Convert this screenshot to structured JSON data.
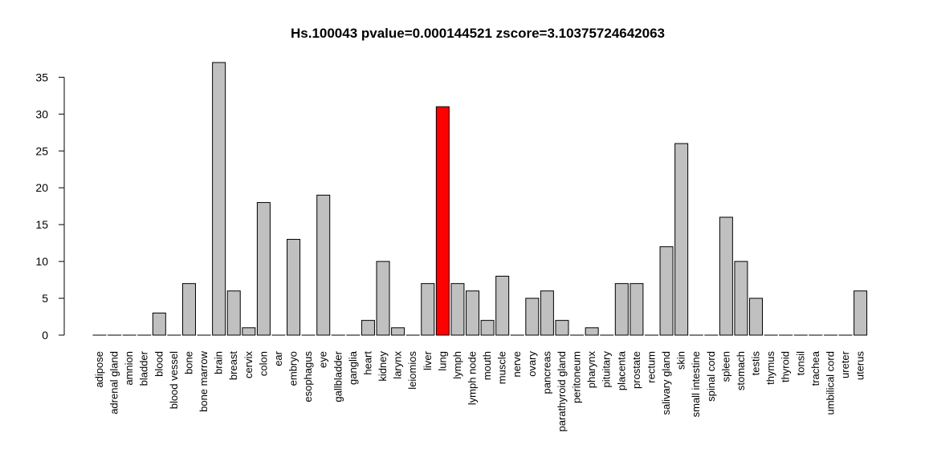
{
  "chart_data": {
    "type": "bar",
    "title": "Hs.100043 pvalue=0.000144521 zscore=3.10375724642063",
    "xlabel": "",
    "ylabel": "",
    "ylim": [
      0,
      37
    ],
    "yticks": [
      0,
      5,
      10,
      15,
      20,
      25,
      30,
      35
    ],
    "grid": false,
    "categories": [
      "adipose",
      "adrenal gland",
      "amnion",
      "bladder",
      "blood",
      "blood vessel",
      "bone",
      "bone marrow",
      "brain",
      "breast",
      "cervix",
      "colon",
      "ear",
      "embryo",
      "esophagus",
      "eye",
      "gallbladder",
      "ganglia",
      "heart",
      "kidney",
      "larynx",
      "leiomios",
      "liver",
      "lung",
      "lymph",
      "lymph node",
      "mouth",
      "muscle",
      "nerve",
      "ovary",
      "pancreas",
      "parathyroid gland",
      "peritoneum",
      "pharynx",
      "pituitary",
      "placenta",
      "prostate",
      "rectum",
      "salivary gland",
      "skin",
      "small intestine",
      "spinal cord",
      "spleen",
      "stomach",
      "testis",
      "thymus",
      "thyroid",
      "tonsil",
      "trachea",
      "umbilical cord",
      "ureter",
      "uterus"
    ],
    "values": [
      0,
      0,
      0,
      0,
      3,
      0,
      7,
      0,
      37,
      6,
      1,
      18,
      0,
      13,
      0,
      19,
      0,
      0,
      2,
      10,
      1,
      0,
      7,
      31,
      7,
      6,
      2,
      8,
      0,
      5,
      6,
      2,
      0,
      1,
      0,
      7,
      7,
      0,
      12,
      26,
      0,
      0,
      16,
      10,
      5,
      0,
      0,
      0,
      0,
      0,
      0,
      6
    ],
    "highlight_category": "lung",
    "bar_color": "#c0c0c0",
    "highlight_color": "#ff0000",
    "border_color": "#000000"
  }
}
